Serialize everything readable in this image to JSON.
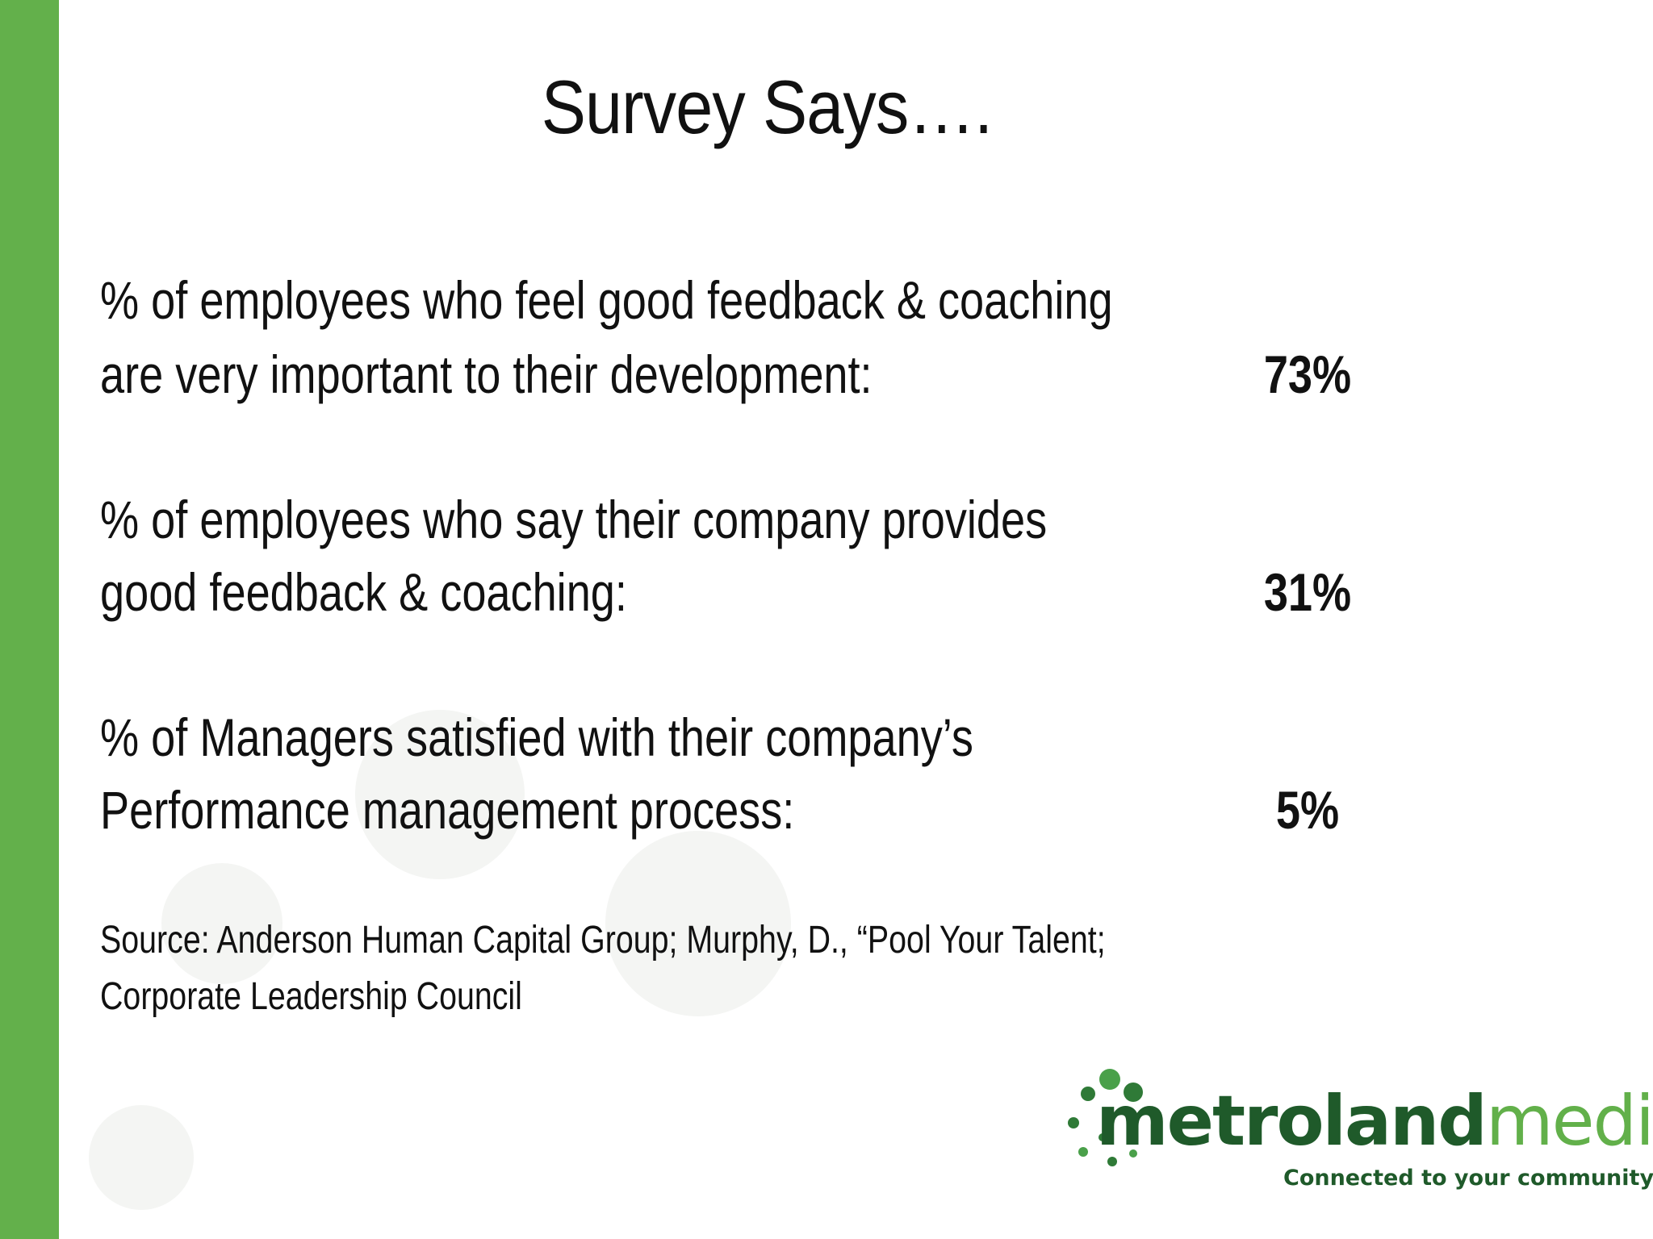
{
  "colors": {
    "accent": "#63b04b",
    "text": "#111111",
    "logo_dark": "#1f5a2a",
    "logo_light": "#62b04a"
  },
  "slide": {
    "title": "Survey Says….",
    "stats": [
      {
        "line1": "% of employees who feel good feedback & coaching",
        "line2": "are very important to their development:",
        "value": "73%"
      },
      {
        "line1": "% of employees who say their company provides",
        "line2": "good feedback & coaching:",
        "value": "31%"
      },
      {
        "line1": "% of Managers satisfied with their company’s",
        "line2": "Performance management process:",
        "value": "5%"
      }
    ],
    "source": {
      "line1": "Source: Anderson Human Capital Group; Murphy, D., “Pool Your Talent;",
      "line2": "Corporate Leadership Council"
    }
  },
  "logo": {
    "name_part1": "metroland",
    "name_part2": "media",
    "tagline": "Connected to your community",
    "tm": "™"
  }
}
